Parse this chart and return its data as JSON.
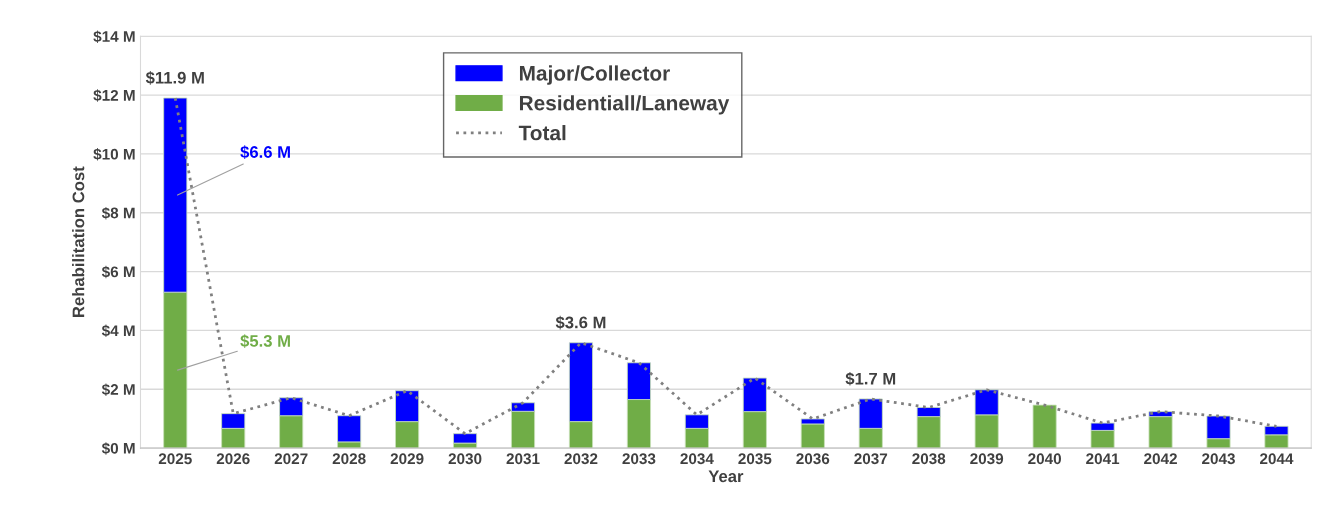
{
  "chart_data": {
    "type": "bar",
    "stacked": true,
    "xlabel": "Year",
    "ylabel": "Rehabilitation Cost",
    "categories": [
      "2025",
      "2026",
      "2027",
      "2028",
      "2029",
      "2030",
      "2031",
      "2032",
      "2033",
      "2034",
      "2035",
      "2036",
      "2037",
      "2038",
      "2039",
      "2040",
      "2041",
      "2042",
      "2043",
      "2044"
    ],
    "series": [
      {
        "name": "Residentiall/Laneway",
        "color": "#70ad47",
        "values": [
          5.3,
          0.67,
          1.1,
          0.21,
          0.9,
          0.17,
          1.25,
          0.9,
          1.65,
          0.67,
          1.24,
          0.82,
          0.67,
          1.07,
          1.13,
          1.46,
          0.6,
          1.07,
          0.32,
          0.45
        ],
        "value_labels": [
          "$5.3 M",
          null,
          null,
          null,
          null,
          null,
          null,
          null,
          null,
          null,
          null,
          null,
          null,
          null,
          null,
          null,
          null,
          null,
          null,
          null
        ]
      },
      {
        "name": "Major/Collector",
        "color": "#0000ff",
        "values": [
          6.6,
          0.5,
          0.61,
          0.89,
          1.05,
          0.32,
          0.29,
          2.68,
          1.25,
          0.46,
          1.14,
          0.17,
          1.0,
          0.31,
          0.85,
          null,
          0.25,
          0.17,
          0.77,
          0.29
        ],
        "value_labels": [
          "$6.6 M",
          null,
          null,
          null,
          null,
          null,
          null,
          null,
          null,
          null,
          null,
          null,
          null,
          null,
          null,
          null,
          null,
          null,
          null,
          null
        ]
      },
      {
        "name": "Total",
        "type": "line",
        "color": "#808080",
        "line_style": "dotted",
        "values": [
          11.9,
          1.17,
          1.71,
          1.1,
          1.95,
          0.49,
          1.54,
          3.58,
          2.9,
          1.13,
          2.38,
          0.99,
          1.67,
          1.38,
          1.98,
          1.46,
          0.85,
          1.24,
          1.09,
          0.74
        ],
        "value_labels": [
          "$11.9 M",
          null,
          null,
          null,
          null,
          null,
          null,
          "$3.6 M",
          null,
          null,
          null,
          null,
          "$1.7 M",
          null,
          null,
          null,
          null,
          null,
          null,
          null
        ]
      }
    ],
    "ylim": [
      0,
      14
    ],
    "yticks": [
      {
        "value": 0,
        "label": "$0 M"
      },
      {
        "value": 2,
        "label": "$2 M"
      },
      {
        "value": 4,
        "label": "$4 M"
      },
      {
        "value": 6,
        "label": "$6 M"
      },
      {
        "value": 8,
        "label": "$8 M"
      },
      {
        "value": 10,
        "label": "$10 M"
      },
      {
        "value": 12,
        "label": "$12 M"
      },
      {
        "value": 14,
        "label": "$14 M"
      }
    ],
    "grid": "y",
    "legend": "top"
  }
}
